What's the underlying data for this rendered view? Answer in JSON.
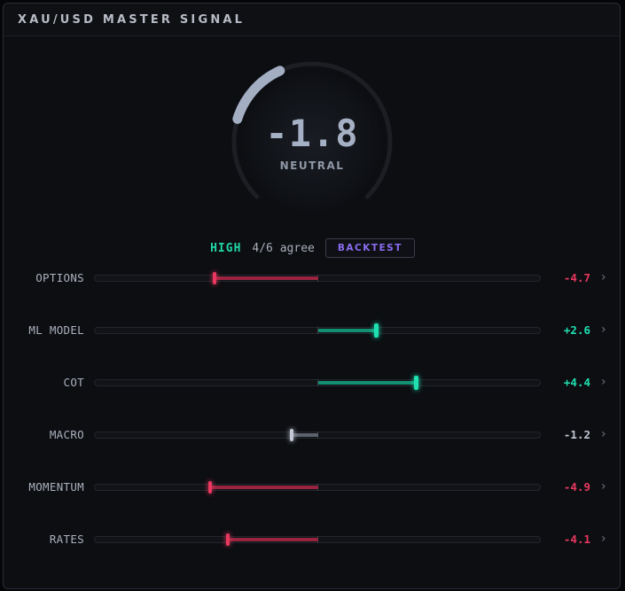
{
  "header": {
    "title": "XAU/USD MASTER SIGNAL"
  },
  "gauge": {
    "value": "-1.8",
    "label": "NEUTRAL",
    "numeric": -1.8,
    "min": -10,
    "max": 10
  },
  "consensus": {
    "confidence": "HIGH",
    "agreement": "4/6 agree",
    "backtest_label": "BACKTEST"
  },
  "colors": {
    "negative": "#e8385f",
    "negative_fill": "#9a2440",
    "positive": "#1fe0b0",
    "positive_fill": "#138f72",
    "neutral": "#c2c8d4",
    "neutral_fill": "#5c626c",
    "gauge_arc": "#a3aec3",
    "gauge_track": "#1c1e23"
  },
  "signals": [
    {
      "label": "OPTIONS",
      "value": "-4.7",
      "numeric": -4.7,
      "tone": "negative",
      "icon": "chevron-right-icon"
    },
    {
      "label": "ML MODEL",
      "value": "+2.6",
      "numeric": 2.6,
      "tone": "positive",
      "icon": "chevron-right-icon"
    },
    {
      "label": "COT",
      "value": "+4.4",
      "numeric": 4.4,
      "tone": "positive",
      "icon": "chevron-right-icon"
    },
    {
      "label": "MACRO",
      "value": "-1.2",
      "numeric": -1.2,
      "tone": "neutral",
      "icon": "chevron-right-icon"
    },
    {
      "label": "MOMENTUM",
      "value": "-4.9",
      "numeric": -4.9,
      "tone": "negative",
      "icon": "chevron-right-icon"
    },
    {
      "label": "RATES",
      "value": "-4.1",
      "numeric": -4.1,
      "tone": "negative",
      "icon": "chevron-right-icon"
    }
  ]
}
